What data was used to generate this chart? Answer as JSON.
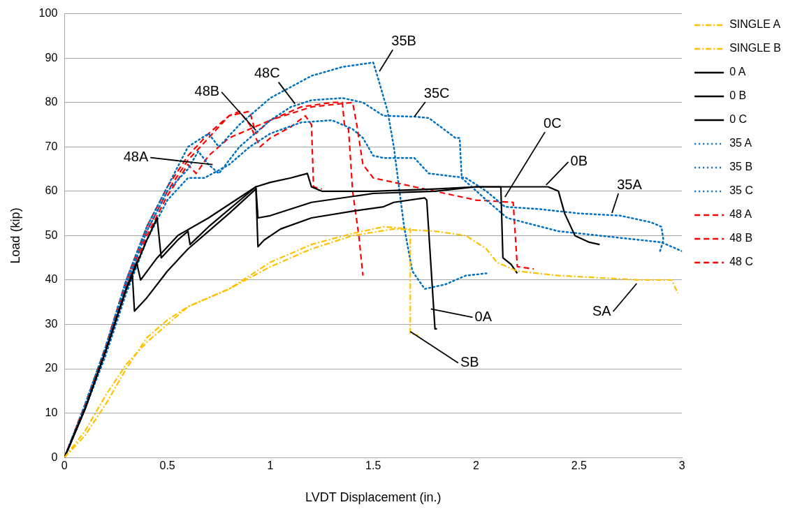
{
  "chart_data": {
    "type": "line",
    "xlabel": "LVDT Displacement (in.)",
    "ylabel": "Load (kip)",
    "xlim": [
      0,
      3
    ],
    "xticks": [
      0,
      0.5,
      1,
      1.5,
      2,
      2.5,
      3
    ],
    "ylim": [
      0,
      100
    ],
    "yticks": [
      0,
      10,
      20,
      30,
      40,
      50,
      60,
      70,
      80,
      90,
      100
    ],
    "grid": "y",
    "legend": "right",
    "marker": "none",
    "series": [
      {
        "name": "SINGLE A",
        "color": "#ffc000",
        "line_style": "dashdot",
        "x": [
          0,
          0.1,
          0.2,
          0.3,
          0.4,
          0.5,
          0.6,
          0.8,
          1.0,
          1.2,
          1.4,
          1.6,
          1.8,
          1.95,
          2.05,
          2.1,
          2.2,
          2.4,
          2.6,
          2.8,
          2.95,
          2.98
        ],
        "values": [
          0,
          6,
          14,
          21,
          26,
          30,
          34,
          38,
          43,
          47,
          50,
          51.5,
          51,
          50,
          47,
          44,
          42,
          41,
          40.5,
          40,
          40,
          37
        ]
      },
      {
        "name": "SINGLE B",
        "color": "#ffc000",
        "line_style": "dashdot",
        "x": [
          0,
          0.1,
          0.2,
          0.3,
          0.4,
          0.5,
          0.6,
          0.8,
          1.0,
          1.2,
          1.4,
          1.55,
          1.68,
          1.68,
          1.72
        ],
        "values": [
          0,
          5,
          12,
          20,
          27,
          31,
          34,
          38,
          44,
          48,
          50.5,
          52,
          51.5,
          28,
          27.5
        ]
      },
      {
        "name": "0 A",
        "color": "#000000",
        "line_style": "solid",
        "x": [
          0,
          0.1,
          0.2,
          0.3,
          0.33,
          0.34,
          0.4,
          0.5,
          0.6,
          0.7,
          0.8,
          0.93,
          0.94,
          0.97,
          1.05,
          1.2,
          1.4,
          1.55,
          1.6,
          1.75,
          1.76,
          1.8,
          1.81
        ],
        "values": [
          0,
          11,
          24,
          38,
          41,
          33,
          36,
          42,
          47,
          51,
          55,
          60.5,
          47.5,
          49,
          51.5,
          54,
          55.5,
          56.5,
          57.5,
          58.5,
          58,
          29,
          29
        ]
      },
      {
        "name": "0 B",
        "color": "#000000",
        "line_style": "solid",
        "x": [
          0,
          0.1,
          0.2,
          0.3,
          0.35,
          0.37,
          0.45,
          0.55,
          0.7,
          0.93,
          0.94,
          1.0,
          1.2,
          1.5,
          1.8,
          2.0,
          2.35,
          2.4,
          2.43,
          2.48,
          2.55,
          2.6
        ],
        "values": [
          0,
          11,
          24,
          38,
          44,
          40,
          45,
          50,
          54,
          61,
          54,
          54.5,
          57.5,
          59.5,
          60,
          61,
          61,
          60,
          55,
          50,
          48.5,
          48
        ]
      },
      {
        "name": "0 C",
        "color": "#000000",
        "line_style": "solid",
        "x": [
          0,
          0.1,
          0.2,
          0.3,
          0.4,
          0.45,
          0.47,
          0.55,
          0.6,
          0.61,
          0.7,
          0.93,
          1.0,
          1.1,
          1.18,
          1.2,
          1.25,
          1.5,
          1.8,
          2.0,
          2.12,
          2.13,
          2.17,
          2.2
        ],
        "values": [
          0,
          11,
          24,
          38,
          49,
          54,
          45,
          49,
          51,
          48,
          52,
          61,
          62,
          63,
          64,
          61,
          60,
          60,
          60.5,
          61,
          61,
          45,
          43.5,
          41.5
        ]
      },
      {
        "name": "35 A",
        "color": "#0070c0",
        "line_style": "dotted",
        "x": [
          0,
          0.1,
          0.2,
          0.3,
          0.4,
          0.5,
          0.6,
          0.68,
          0.8,
          0.9,
          1.0,
          1.15,
          1.3,
          1.4,
          1.45,
          1.5,
          1.55,
          1.7,
          1.77,
          1.95,
          2.05,
          2.14,
          2.3,
          2.5,
          2.7,
          2.85,
          2.9,
          2.91,
          2.89
        ],
        "values": [
          0,
          11,
          23,
          37,
          49,
          58,
          63,
          63,
          66,
          70,
          73,
          75.5,
          76,
          74,
          72,
          68,
          67.5,
          67.5,
          64,
          63,
          60,
          56.5,
          56,
          55,
          54.5,
          53,
          52,
          49,
          46
        ]
      },
      {
        "name": "35 B",
        "color": "#0070c0",
        "line_style": "dotted",
        "x": [
          0,
          0.1,
          0.2,
          0.3,
          0.4,
          0.5,
          0.6,
          0.7,
          0.75,
          0.85,
          1.0,
          1.2,
          1.35,
          1.5,
          1.52,
          1.57,
          1.6,
          1.65,
          1.69,
          1.75,
          1.85,
          1.95,
          2.05
        ],
        "values": [
          0,
          12,
          25,
          40,
          52,
          61,
          70,
          73,
          70,
          75,
          81,
          86,
          88,
          89,
          86,
          78,
          70,
          52,
          42,
          38,
          39,
          41,
          41.5
        ]
      },
      {
        "name": "35 C",
        "color": "#0070c0",
        "line_style": "dotted",
        "x": [
          0,
          0.1,
          0.2,
          0.3,
          0.4,
          0.5,
          0.6,
          0.65,
          0.7,
          0.75,
          0.85,
          1.0,
          1.1,
          1.2,
          1.35,
          1.45,
          1.55,
          1.7,
          1.77,
          1.9,
          1.92,
          1.93,
          2.05,
          2.15,
          2.4,
          2.6,
          2.9,
          3.0
        ],
        "values": [
          0,
          11,
          24,
          39,
          51,
          60,
          65,
          69,
          66,
          64,
          70,
          76,
          79,
          80.5,
          81,
          80,
          77,
          76.8,
          76.5,
          72,
          72,
          63,
          58,
          54,
          51,
          50,
          48.5,
          46.5
        ]
      },
      {
        "name": "48 A",
        "color": "#ff0000",
        "line_style": "dashed",
        "x": [
          0,
          0.1,
          0.2,
          0.3,
          0.4,
          0.5,
          0.6,
          0.64,
          0.7,
          0.8,
          0.9,
          1.0,
          1.1,
          1.15,
          1.3,
          1.35,
          1.36,
          1.38,
          1.4,
          1.43,
          1.45
        ],
        "values": [
          0,
          11,
          24,
          38,
          50,
          59,
          66,
          64,
          68,
          72,
          74,
          76,
          78,
          79,
          80,
          80,
          75,
          74,
          60,
          50,
          41
        ]
      },
      {
        "name": "48 B",
        "color": "#ff0000",
        "line_style": "dashed",
        "x": [
          0,
          0.1,
          0.2,
          0.3,
          0.4,
          0.5,
          0.6,
          0.7,
          0.8,
          0.9,
          0.93,
          1.0,
          1.1,
          1.2,
          1.3,
          1.4,
          1.42,
          1.45,
          1.5,
          1.6,
          1.8,
          2.0,
          2.18,
          2.2,
          2.28
        ],
        "values": [
          0,
          12,
          25,
          40,
          52,
          61,
          68,
          73,
          77,
          78,
          73,
          76,
          77.5,
          79,
          79.5,
          80,
          75,
          66,
          63,
          62,
          60,
          58,
          57.5,
          43,
          42.5
        ]
      },
      {
        "name": "48 C",
        "color": "#ff0000",
        "line_style": "dashed",
        "x": [
          0,
          0.1,
          0.2,
          0.3,
          0.4,
          0.5,
          0.6,
          0.7,
          0.8,
          0.85,
          0.9,
          0.95,
          1.0,
          1.1,
          1.17,
          1.2,
          1.21,
          1.25
        ],
        "values": [
          0,
          11,
          24,
          39,
          51,
          60,
          67,
          72,
          77,
          78,
          75,
          70,
          72,
          74.5,
          77,
          75,
          61,
          60.5
        ]
      }
    ],
    "annotations": [
      {
        "text": "35B",
        "x": 1.53,
        "y": 87
      },
      {
        "text": "35C",
        "x": 1.7,
        "y": 76.8
      },
      {
        "text": "48C",
        "x": 1.12,
        "y": 79.7
      },
      {
        "text": "48B",
        "x": 0.93,
        "y": 73.7
      },
      {
        "text": "48A",
        "x": 0.72,
        "y": 66
      },
      {
        "text": "0C",
        "x": 2.14,
        "y": 58.7
      },
      {
        "text": "0B",
        "x": 2.34,
        "y": 61.4
      },
      {
        "text": "35A",
        "x": 2.66,
        "y": 55.1
      },
      {
        "text": "0A",
        "x": 1.78,
        "y": 33.5
      },
      {
        "text": "SB",
        "x": 1.68,
        "y": 28.4
      },
      {
        "text": "SA",
        "x": 2.78,
        "y": 39.2
      }
    ]
  }
}
